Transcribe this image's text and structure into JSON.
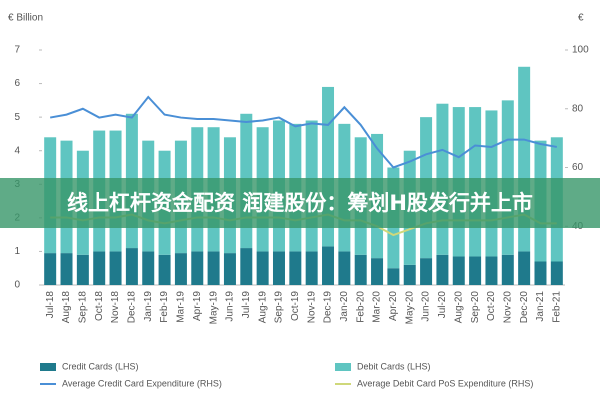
{
  "chart_data": {
    "type": "bar-line",
    "y_label": "€ Billion",
    "y2_label": "€",
    "banner": "线上杠杆资金配资 润建股份：筹划H股发行并上市",
    "categories": [
      "Jul-18",
      "Aug-18",
      "Sep-18",
      "Oct-18",
      "Nov-18",
      "Dec-18",
      "Jan-19",
      "Feb-19",
      "Mar-19",
      "Apr-19",
      "May-19",
      "Jun-19",
      "Jul-19",
      "Aug-19",
      "Sep-19",
      "Oct-19",
      "Nov-19",
      "Dec-19",
      "Jan-20",
      "Feb-20",
      "Mar-20",
      "Apr-20",
      "May-20",
      "Jun-20",
      "Jul-20",
      "Aug-20",
      "Sep-20",
      "Oct-20",
      "Nov-20",
      "Dec-20",
      "Jan-21",
      "Feb-21"
    ],
    "ylim": [
      0,
      7
    ],
    "yticks": [
      0,
      1,
      2,
      3,
      4,
      5,
      6,
      7
    ],
    "y2lim": [
      20,
      100
    ],
    "y2ticks": [
      40,
      60,
      80,
      100
    ],
    "series": [
      {
        "name": "Credit Cards (LHS)",
        "color": "#1f7a8c",
        "kind": "bar",
        "values": [
          0.95,
          0.95,
          0.9,
          1.0,
          1.0,
          1.1,
          1.0,
          0.9,
          0.95,
          1.0,
          1.0,
          0.95,
          1.1,
          1.0,
          1.0,
          1.0,
          1.0,
          1.15,
          1.0,
          0.9,
          0.8,
          0.5,
          0.6,
          0.8,
          0.9,
          0.85,
          0.85,
          0.85,
          0.9,
          1.0,
          0.7,
          0.7
        ]
      },
      {
        "name": "Debit Cards (LHS)",
        "color": "#5fc5c1",
        "kind": "bar",
        "values": [
          3.45,
          3.35,
          3.1,
          3.6,
          3.6,
          4.0,
          3.3,
          3.1,
          3.35,
          3.7,
          3.7,
          3.45,
          4.0,
          3.7,
          3.9,
          3.8,
          3.9,
          4.75,
          3.8,
          3.5,
          3.7,
          3.0,
          3.4,
          4.2,
          4.5,
          4.45,
          4.45,
          4.35,
          4.6,
          5.5,
          3.6,
          3.7
        ]
      },
      {
        "name": "Average Credit Card Expenditure (RHS)",
        "color": "#4a8fd6",
        "kind": "line",
        "axis": "y2",
        "values": [
          77,
          78,
          80,
          77,
          78,
          77,
          84,
          78,
          77,
          76.5,
          76.5,
          76,
          75.5,
          76,
          77,
          74,
          75,
          74.5,
          80.5,
          74.5,
          66.5,
          60,
          62,
          64.5,
          66,
          63.5,
          67.5,
          67,
          69.5,
          69.5,
          68,
          67
        ]
      },
      {
        "name": "Average Debit Card PoS Expenditure (RHS)",
        "color": "#cfd87a",
        "kind": "line",
        "axis": "y2",
        "values": [
          43,
          43,
          42,
          43,
          43,
          44,
          42,
          41,
          42,
          43,
          43,
          42,
          43,
          43,
          43,
          42,
          43,
          44,
          42,
          42,
          40,
          37,
          39,
          41,
          42,
          42,
          42,
          42,
          43,
          44,
          41,
          41
        ]
      }
    ]
  }
}
